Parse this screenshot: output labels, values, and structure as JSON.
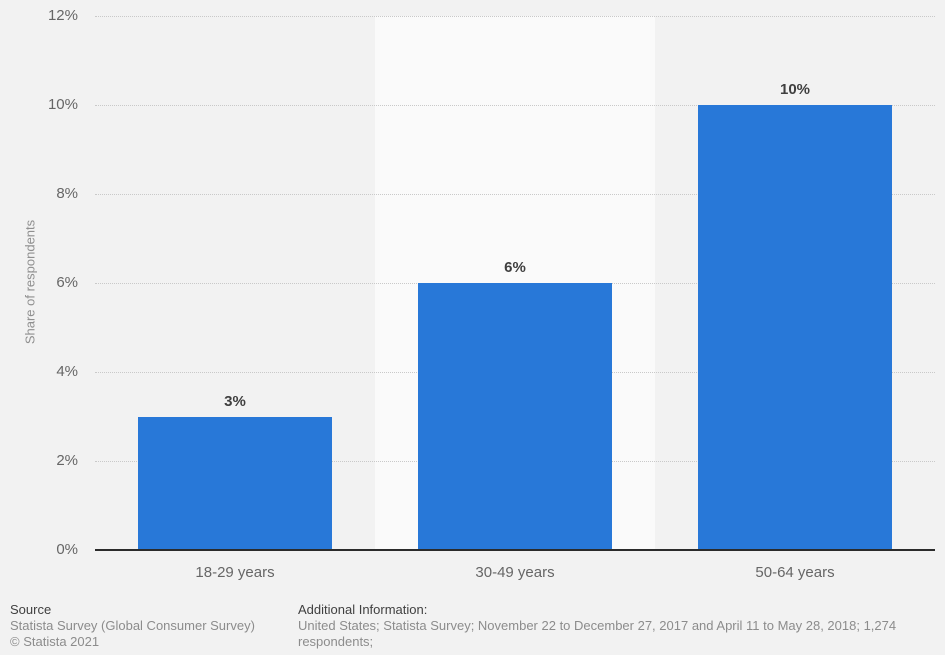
{
  "colors": {
    "page_background": "#f2f2f2",
    "band_alt": "#fafafa",
    "bar": "#2878d8",
    "gridline": "#c9c9c9",
    "axis_line": "#2b2b2b",
    "tick_label": "#666666",
    "value_label": "#3f3f3f",
    "axis_title": "#8f8f8f",
    "footer_heading": "#404040",
    "footer_text": "#8c8c8c"
  },
  "chart_data": {
    "type": "bar",
    "categories": [
      "18-29 years",
      "30-49 years",
      "50-64 years"
    ],
    "values": [
      3,
      6,
      10
    ],
    "value_labels": [
      "3%",
      "6%",
      "10%"
    ],
    "ylabel": "Share of respondents",
    "xlabel": "",
    "ylim": [
      0,
      12
    ],
    "yticks": [
      0,
      2,
      4,
      6,
      8,
      10,
      12
    ],
    "ytick_labels": [
      "0%",
      "2%",
      "4%",
      "6%",
      "8%",
      "10%",
      "12%"
    ],
    "grid": "horizontal-dotted",
    "legend": "none",
    "bar_color": "#2878d8"
  },
  "footer": {
    "source_heading": "Source",
    "source_line1": "Statista Survey (Global Consumer Survey)",
    "source_line2": "© Statista 2021",
    "additional_heading": "Additional Information:",
    "additional_text": "United States; Statista Survey; November 22 to December 27, 2017 and April 11 to May 28, 2018; 1,274 respondents;"
  }
}
